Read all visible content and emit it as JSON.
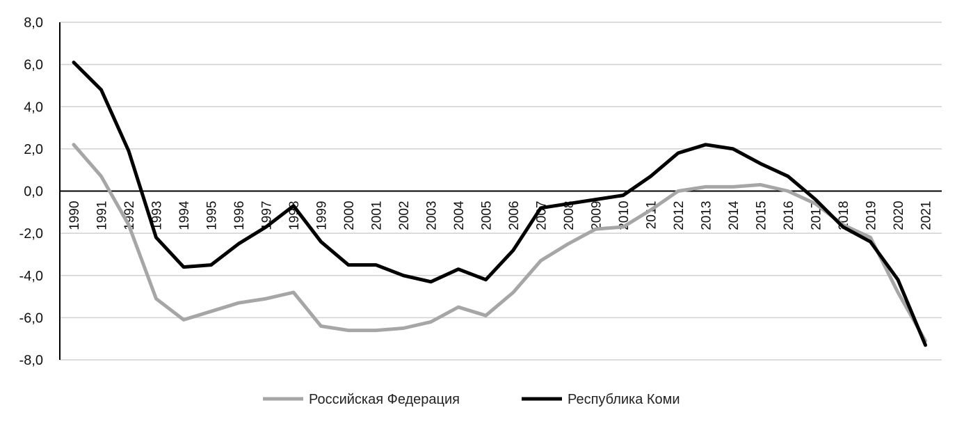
{
  "chart_data": {
    "type": "line",
    "x": [
      "1990",
      "1991",
      "1992",
      "1993",
      "1994",
      "1995",
      "1996",
      "1997",
      "1998",
      "1999",
      "2000",
      "2001",
      "2002",
      "2003",
      "2004",
      "2005",
      "2006",
      "2007",
      "2008",
      "2009",
      "2010",
      "2011",
      "2012",
      "2013",
      "2014",
      "2015",
      "2016",
      "2017",
      "2018",
      "2019",
      "2020",
      "2021"
    ],
    "y_ticks": [
      "8,0",
      "6,0",
      "4,0",
      "2,0",
      "0,0",
      "-2,0",
      "-4,0",
      "-6,0",
      "-8,0"
    ],
    "ylim": [
      -8,
      8
    ],
    "grid": true,
    "legend_position": "bottom",
    "series": [
      {
        "name": "Российская Федерация",
        "color": "#a6a6a6",
        "values": [
          2.2,
          0.7,
          -1.6,
          -5.1,
          -6.1,
          -5.7,
          -5.3,
          -5.1,
          -4.8,
          -6.4,
          -6.6,
          -6.6,
          -6.5,
          -6.2,
          -5.5,
          -5.9,
          -4.8,
          -3.3,
          -2.5,
          -1.8,
          -1.7,
          -0.9,
          0.0,
          0.2,
          0.2,
          0.3,
          0.0,
          -0.6,
          -1.6,
          -2.2,
          -4.8,
          -7.1
        ]
      },
      {
        "name": "Республика Коми",
        "color": "#000000",
        "values": [
          6.1,
          4.8,
          1.9,
          -2.2,
          -3.6,
          -3.5,
          -2.5,
          -1.7,
          -0.7,
          -2.4,
          -3.5,
          -3.5,
          -4.0,
          -4.3,
          -3.7,
          -4.2,
          -2.8,
          -0.8,
          -0.6,
          -0.4,
          -0.2,
          0.7,
          1.8,
          2.2,
          2.0,
          1.3,
          0.7,
          -0.4,
          -1.7,
          -2.4,
          -4.2,
          -7.3
        ]
      }
    ]
  }
}
